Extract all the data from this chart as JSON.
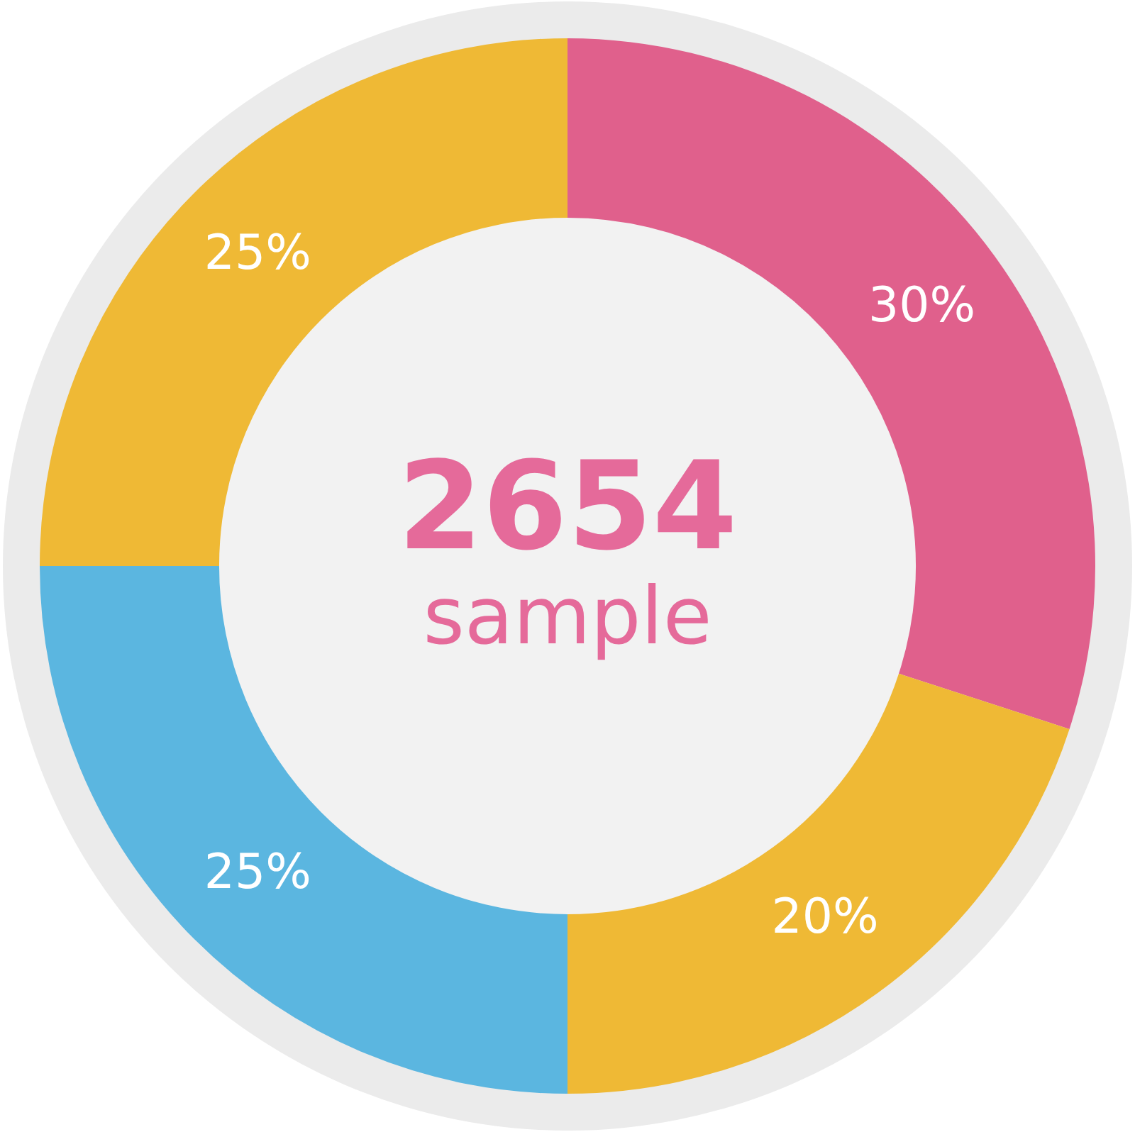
{
  "chart_data": {
    "type": "donut",
    "categories": [
      null,
      null,
      null,
      null
    ],
    "values": [
      30,
      20,
      25,
      25
    ],
    "colors": [
      "#e0608c",
      "#efb935",
      "#5bb6e0",
      "#efb935"
    ],
    "value_labels": [
      "30%",
      "20%",
      "25%",
      "25%"
    ],
    "annotations": [
      "2654",
      "sample"
    ],
    "legend": false
  }
}
